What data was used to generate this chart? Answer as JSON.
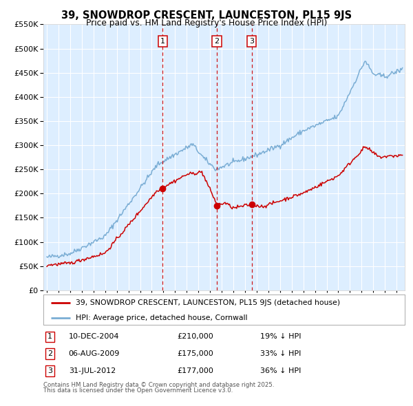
{
  "title": "39, SNOWDROP CRESCENT, LAUNCESTON, PL15 9JS",
  "subtitle": "Price paid vs. HM Land Registry's House Price Index (HPI)",
  "legend_line1": "39, SNOWDROP CRESCENT, LAUNCESTON, PL15 9JS (detached house)",
  "legend_line2": "HPI: Average price, detached house, Cornwall",
  "transaction_color": "#cc0000",
  "hpi_color": "#7aadd4",
  "bg_color": "#ddeeff",
  "grid_color": "#ffffff",
  "transactions": [
    {
      "label": "1",
      "date_str": "10-DEC-2004",
      "price": 210000,
      "pct": "19%",
      "x_year": 2004.94
    },
    {
      "label": "2",
      "date_str": "06-AUG-2009",
      "price": 175000,
      "pct": "33%",
      "x_year": 2009.59
    },
    {
      "label": "3",
      "date_str": "31-JUL-2012",
      "price": 177000,
      "pct": "36%",
      "x_year": 2012.57
    }
  ],
  "footnote1": "Contains HM Land Registry data © Crown copyright and database right 2025.",
  "footnote2": "This data is licensed under the Open Government Licence v3.0.",
  "ylim_max": 550000,
  "xlim_start": 1994.7,
  "xlim_end": 2025.7,
  "yticks": [
    0,
    50000,
    100000,
    150000,
    200000,
    250000,
    300000,
    350000,
    400000,
    450000,
    500000,
    550000
  ]
}
